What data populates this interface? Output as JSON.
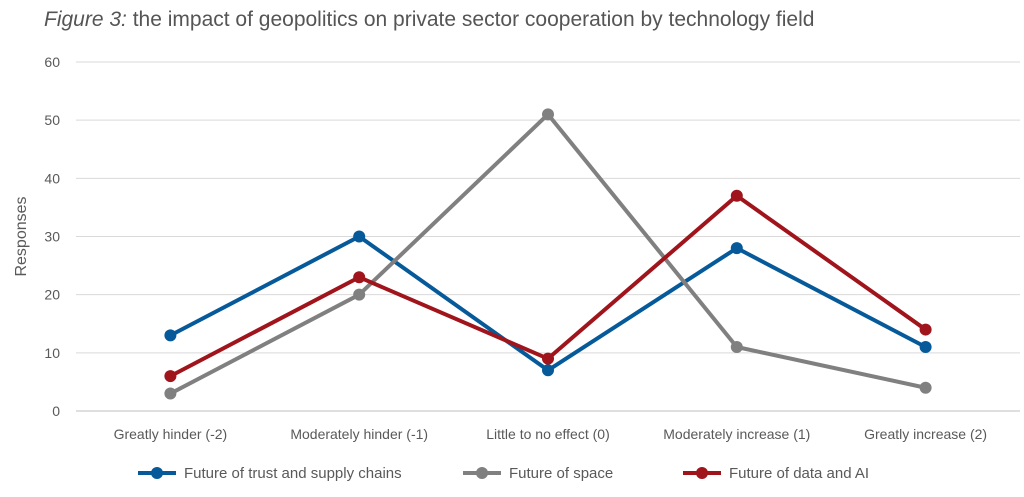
{
  "title": {
    "prefix": "Figure 3:",
    "text": "the impact of geopolitics on private sector cooperation by technology field"
  },
  "chart_data": {
    "type": "line",
    "title": "Figure 3: the impact of geopolitics on private sector cooperation by technology field",
    "xlabel": "",
    "ylabel": "Responses",
    "ylim": [
      0,
      60
    ],
    "yticks": [
      0,
      10,
      20,
      30,
      40,
      50,
      60
    ],
    "grid": true,
    "legend": "bottom",
    "categories": [
      "Greatly hinder (-2)",
      "Moderately hinder (-1)",
      "Little to no effect (0)",
      "Moderately increase (1)",
      "Greatly increase (2)"
    ],
    "series": [
      {
        "name": "Future of trust and supply chains",
        "color": "#065a9a",
        "values": [
          13,
          30,
          7,
          28,
          11
        ]
      },
      {
        "name": "Future of space",
        "color": "#808080",
        "values": [
          3,
          20,
          51,
          11,
          4
        ]
      },
      {
        "name": "Future of data and AI",
        "color": "#a0141c",
        "values": [
          6,
          23,
          9,
          37,
          14
        ]
      }
    ]
  }
}
